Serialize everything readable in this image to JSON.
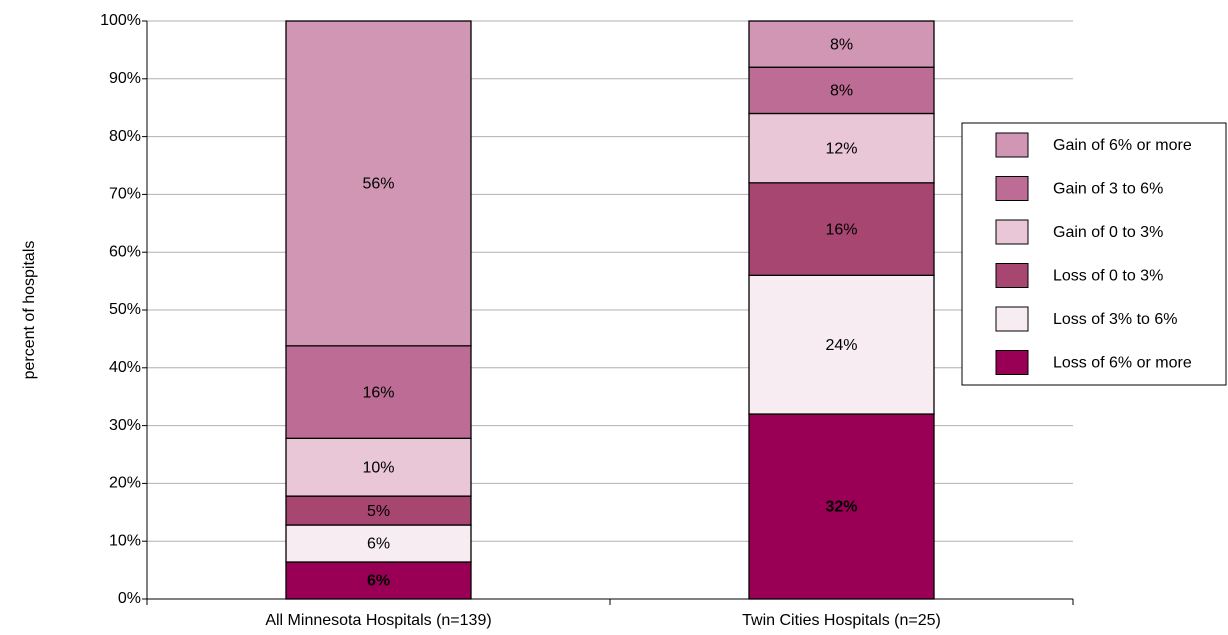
{
  "chart_data": {
    "type": "stacked-bar",
    "y_label": "percent of hospitals",
    "categories": [
      "All Minnesota Hospitals (n=139)",
      "Twin Cities Hospitals (n=25)"
    ],
    "series": [
      {
        "name": "Loss of 6% or more",
        "color": "#990055",
        "label_color": "#ffffff",
        "values": [
          6.4,
          32
        ],
        "value_labels": [
          "6%",
          "32%"
        ]
      },
      {
        "name": "Loss of 3% to 6%",
        "color": "#f6ecf1",
        "values": [
          6.4,
          24
        ],
        "value_labels": [
          "6%",
          "24%"
        ]
      },
      {
        "name": "Loss of 0 to 3%",
        "color": "#a84672",
        "values": [
          5,
          16
        ],
        "value_labels": [
          "5%",
          "16%"
        ]
      },
      {
        "name": "Gain of 0 to 3%",
        "color": "#e9c7d7",
        "values": [
          10,
          12
        ],
        "value_labels": [
          "10%",
          "12%"
        ]
      },
      {
        "name": "Gain of 3 to 6%",
        "color": "#bd6d95",
        "values": [
          16,
          8
        ],
        "value_labels": [
          "16%",
          "8%"
        ]
      },
      {
        "name": "Gain of 6% or more",
        "color": "#d196b4",
        "values": [
          56.2,
          8
        ],
        "value_labels": [
          "56%",
          "8%"
        ]
      }
    ],
    "ylim": [
      0,
      100
    ],
    "yticks": [
      {
        "value": 0,
        "label": "0%"
      },
      {
        "value": 10,
        "label": "10%"
      },
      {
        "value": 20,
        "label": "20%"
      },
      {
        "value": 30,
        "label": "30%"
      },
      {
        "value": 40,
        "label": "40%"
      },
      {
        "value": 50,
        "label": "50%"
      },
      {
        "value": 60,
        "label": "60%"
      },
      {
        "value": 70,
        "label": "70%"
      },
      {
        "value": 80,
        "label": "80%"
      },
      {
        "value": 90,
        "label": "90%"
      },
      {
        "value": 100,
        "label": "100%"
      }
    ],
    "grid": true,
    "legend": "right"
  }
}
